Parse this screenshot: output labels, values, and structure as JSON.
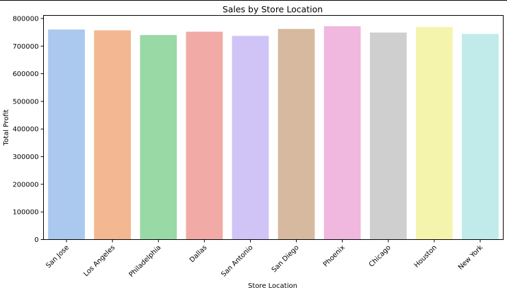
{
  "chart_data": {
    "type": "bar",
    "title": "Sales by Store Location",
    "xlabel": "Store Location",
    "ylabel": "Total Profit",
    "categories": [
      "San Jose",
      "Los Angeles",
      "Philadelphia",
      "Dallas",
      "San Antonio",
      "San Diego",
      "Phoenix",
      "Chicago",
      "Houston",
      "New York"
    ],
    "values": [
      760000,
      757000,
      740000,
      752000,
      737000,
      762000,
      772000,
      749000,
      769000,
      744000
    ],
    "colors": [
      "#abc9ee",
      "#f3b891",
      "#99d9a6",
      "#f2aaa6",
      "#d0c4f6",
      "#d6b99f",
      "#f0b7df",
      "#cfcfcf",
      "#f4f4ad",
      "#c0ebea"
    ],
    "yticks": [
      0,
      100000,
      200000,
      300000,
      400000,
      500000,
      600000,
      700000,
      800000
    ],
    "ylim": [
      0,
      811000
    ],
    "grid": false,
    "legend": "none"
  }
}
